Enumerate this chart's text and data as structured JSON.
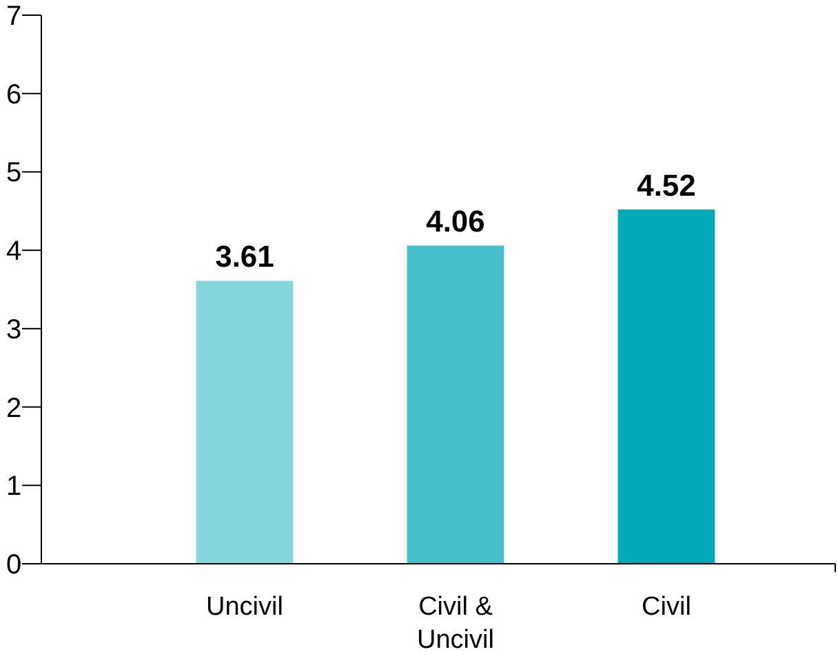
{
  "chart_data": {
    "type": "bar",
    "categories": [
      "Uncivil",
      "Civil & Uncivil",
      "Civil"
    ],
    "values": [
      3.61,
      4.06,
      4.52
    ],
    "colors": [
      "#84d6dd",
      "#45c0ca",
      "#00aab8"
    ],
    "ylim": [
      0,
      7
    ],
    "yticks": [
      0,
      1,
      2,
      3,
      4,
      5,
      6,
      7
    ],
    "data_labels": true
  }
}
